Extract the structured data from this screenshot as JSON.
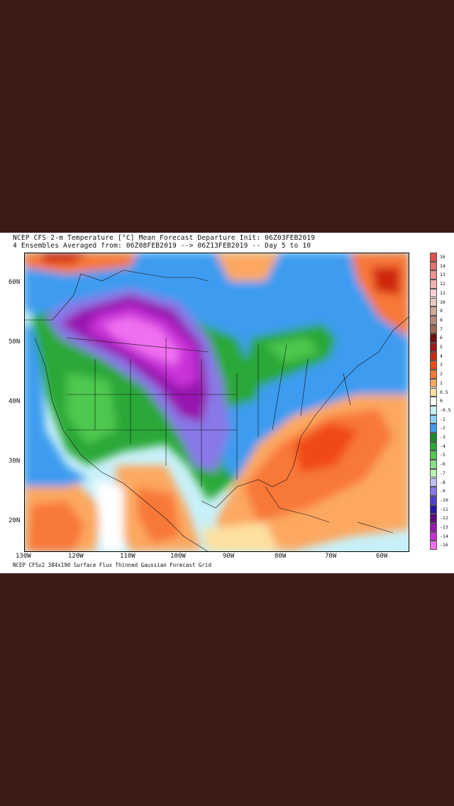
{
  "title": {
    "line1": "NCEP CFS 2-m Temperature [°C] Mean Forecast Departure Init: 06Z03FEB2019",
    "line2": "4 Ensembles Averaged from: 06Z08FEB2019 --> 06Z13FEB2019 -- Day 5 to 10"
  },
  "footer": "NCEP CFSv2 384x190 Surface Flux Thinned Gaussian Forecast Grid",
  "axes": {
    "lat_labels": [
      "60N",
      "50N",
      "40N",
      "30N",
      "20N"
    ],
    "lon_labels": [
      "130W",
      "120W",
      "110W",
      "100W",
      "90W",
      "80W",
      "70W",
      "60W"
    ]
  },
  "legend": [
    {
      "label": "16",
      "color": "#e05050"
    },
    {
      "label": "14",
      "color": "#e87070"
    },
    {
      "label": "13",
      "color": "#f09090"
    },
    {
      "label": "12",
      "color": "#f5b0b0"
    },
    {
      "label": "11",
      "color": "#fad0d0"
    },
    {
      "label": "10",
      "color": "#e8c8c0"
    },
    {
      "label": "9",
      "color": "#d0a898"
    },
    {
      "label": "8",
      "color": "#b88878"
    },
    {
      "label": "7",
      "color": "#a06858"
    },
    {
      "label": "6",
      "color": "#6e1010"
    },
    {
      "label": "5",
      "color": "#a01818"
    },
    {
      "label": "4",
      "color": "#d02810"
    },
    {
      "label": "3",
      "color": "#f04818"
    },
    {
      "label": "2",
      "color": "#f87838"
    },
    {
      "label": "1",
      "color": "#fca860"
    },
    {
      "label": "0.5",
      "color": "#fde0a0"
    },
    {
      "label": "0",
      "color": "#ffffff"
    },
    {
      "label": "-0.5",
      "color": "#c8f0f8"
    },
    {
      "label": "-1",
      "color": "#88d0f8"
    },
    {
      "label": "-2",
      "color": "#3c9cf0"
    },
    {
      "label": "-3",
      "color": "#1a8a28"
    },
    {
      "label": "-4",
      "color": "#2aa838"
    },
    {
      "label": "-5",
      "color": "#50c850"
    },
    {
      "label": "-6",
      "color": "#88e088"
    },
    {
      "label": "-7",
      "color": "#b8f0b0"
    },
    {
      "label": "-8",
      "color": "#c0c0f8"
    },
    {
      "label": "-9",
      "color": "#8878e8"
    },
    {
      "label": "-10",
      "color": "#5040d0"
    },
    {
      "label": "-11",
      "color": "#2818a8"
    },
    {
      "label": "-12",
      "color": "#600880"
    },
    {
      "label": "-13",
      "color": "#9818b0"
    },
    {
      "label": "-14",
      "color": "#c830d8"
    },
    {
      "label": "-16",
      "color": "#f070f0"
    }
  ]
}
